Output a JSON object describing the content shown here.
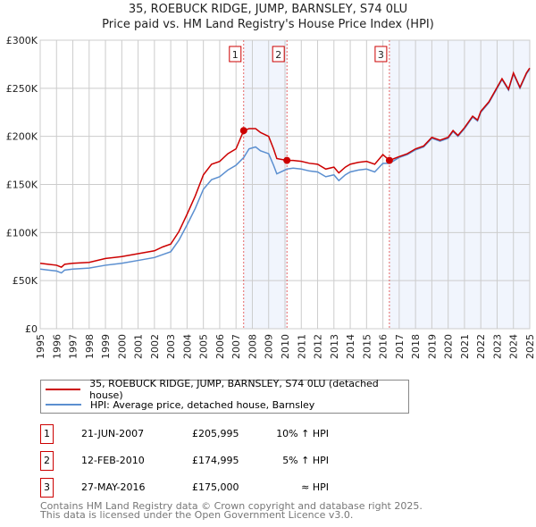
{
  "chart_data": {
    "type": "line",
    "title": "35, ROEBUCK RIDGE, JUMP, BARNSLEY, S74 0LU",
    "subtitle": "Price paid vs. HM Land Registry's House Price Index (HPI)",
    "xlim": [
      1995,
      2025
    ],
    "ylim": [
      0,
      300000
    ],
    "grid": true,
    "x_ticks": [
      "1995",
      "1996",
      "1997",
      "1998",
      "1999",
      "2000",
      "2001",
      "2002",
      "2003",
      "2004",
      "2005",
      "2006",
      "2007",
      "2008",
      "2009",
      "2010",
      "2011",
      "2012",
      "2013",
      "2014",
      "2015",
      "2016",
      "2017",
      "2018",
      "2019",
      "2020",
      "2021",
      "2022",
      "2023",
      "2024",
      "2025"
    ],
    "y_ticks": [
      {
        "v": 0,
        "label": "£0"
      },
      {
        "v": 50000,
        "label": "£50K"
      },
      {
        "v": 100000,
        "label": "£100K"
      },
      {
        "v": 150000,
        "label": "£150K"
      },
      {
        "v": 200000,
        "label": "£200K"
      },
      {
        "v": 250000,
        "label": "£250K"
      },
      {
        "v": 300000,
        "label": "£300K"
      }
    ],
    "x": [
      1995,
      1995.5,
      1996,
      1996.3,
      1996.5,
      1997,
      1998,
      1999,
      2000,
      2001,
      2002,
      2002.5,
      2003,
      2003.5,
      2004,
      2004.5,
      2005,
      2005.5,
      2006,
      2006.5,
      2007,
      2007.47,
      2007.8,
      2008.2,
      2008.5,
      2009,
      2009.3,
      2009.5,
      2010.12,
      2010.5,
      2011,
      2011.5,
      2012,
      2012.5,
      2013,
      2013.3,
      2013.7,
      2014,
      2014.5,
      2015,
      2015.5,
      2016,
      2016.4,
      2017,
      2017.5,
      2018,
      2018.5,
      2019,
      2019.5,
      2020,
      2020.3,
      2020.6,
      2021,
      2021.5,
      2021.8,
      2022,
      2022.5,
      2023,
      2023.3,
      2023.7,
      2024,
      2024.4,
      2024.8,
      2025
    ],
    "series": [
      {
        "name": "35, ROEBUCK RIDGE, JUMP, BARNSLEY, S74 0LU (detached house)",
        "color": "#cc0000",
        "values": [
          68000,
          67000,
          66000,
          64000,
          67000,
          68000,
          69000,
          73000,
          75000,
          78000,
          81000,
          85000,
          88000,
          101000,
          119000,
          138000,
          160000,
          171000,
          174000,
          182000,
          187000,
          206000,
          208000,
          208000,
          204000,
          200000,
          187000,
          177000,
          175000,
          175000,
          174000,
          172000,
          171000,
          166000,
          168000,
          162000,
          168000,
          171000,
          173000,
          174000,
          171000,
          181000,
          175000,
          179000,
          182000,
          187000,
          190000,
          199000,
          196000,
          199000,
          206000,
          201000,
          209000,
          221000,
          217000,
          226000,
          236000,
          251000,
          260000,
          249000,
          266000,
          251000,
          266000,
          271000
        ]
      },
      {
        "name": "HPI: Average price, detached house, Barnsley",
        "color": "#5b8fd0",
        "values": [
          62000,
          61000,
          60000,
          58000,
          61000,
          62000,
          63000,
          66000,
          68000,
          71000,
          74000,
          77000,
          80000,
          92000,
          108000,
          125000,
          145000,
          155000,
          158000,
          165000,
          170000,
          178000,
          187000,
          189000,
          185000,
          182000,
          170000,
          161000,
          166000,
          167000,
          166000,
          164000,
          163000,
          158000,
          160000,
          154000,
          160000,
          163000,
          165000,
          166000,
          163000,
          172000,
          172000,
          178000,
          181000,
          186000,
          189000,
          198000,
          195000,
          198000,
          205000,
          200000,
          208000,
          220000,
          216000,
          225000,
          235000,
          250000,
          259000,
          248000,
          265000,
          250000,
          265000,
          270000
        ]
      }
    ],
    "sales": [
      {
        "id": "1",
        "x": 2007.47,
        "y": 205995,
        "date": "21-JUN-2007",
        "price": "£205,995",
        "hpi": "10% ↑ HPI"
      },
      {
        "id": "2",
        "x": 2010.12,
        "y": 174995,
        "date": "12-FEB-2010",
        "price": "£174,995",
        "hpi": "5% ↑ HPI"
      },
      {
        "id": "3",
        "x": 2016.4,
        "y": 175000,
        "date": "27-MAY-2016",
        "price": "£175,000",
        "hpi": "≈ HPI"
      }
    ],
    "shaded": [
      [
        2007.47,
        2010.12
      ],
      [
        2016.4,
        2025
      ]
    ]
  },
  "footer": {
    "line1": "Contains HM Land Registry data © Crown copyright and database right 2025.",
    "line2": "This data is licensed under the Open Government Licence v3.0."
  }
}
